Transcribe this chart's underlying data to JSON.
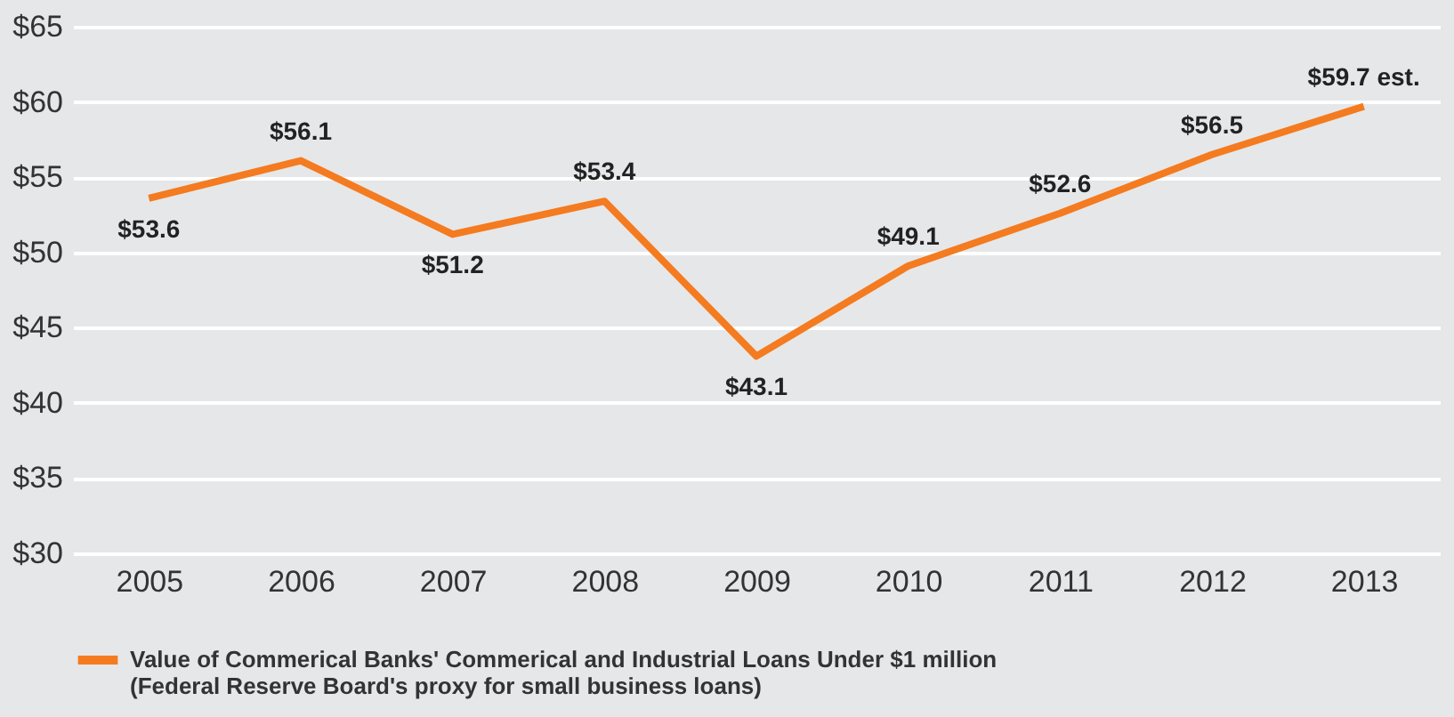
{
  "chart_data": {
    "type": "line",
    "categories": [
      "2005",
      "2006",
      "2007",
      "2008",
      "2009",
      "2010",
      "2011",
      "2012",
      "2013"
    ],
    "series": [
      {
        "name": "Value of Commerical Banks' Commerical and Industrial Loans Under $1 million\n(Federal Reserve Board's proxy for small business loans)",
        "color": "#f47b20",
        "values": [
          53.6,
          56.1,
          51.2,
          53.4,
          43.1,
          49.1,
          52.6,
          56.5,
          59.7
        ],
        "value_labels": [
          "$53.6",
          "$56.1",
          "$51.2",
          "$53.4",
          "$43.1",
          "$49.1",
          "$52.6",
          "$56.5",
          "$59.7 est."
        ]
      }
    ],
    "ylim": [
      30,
      65
    ],
    "yticks": [
      {
        "value": 30,
        "label": "$30"
      },
      {
        "value": 35,
        "label": "$35"
      },
      {
        "value": 40,
        "label": "$40"
      },
      {
        "value": 45,
        "label": "$45"
      },
      {
        "value": 50,
        "label": "$50"
      },
      {
        "value": 55,
        "label": "$55"
      },
      {
        "value": 60,
        "label": "$60"
      },
      {
        "value": 65,
        "label": "$65"
      }
    ],
    "grid": "y",
    "legend": "bottom",
    "marker": "none",
    "line_style": "solid"
  }
}
